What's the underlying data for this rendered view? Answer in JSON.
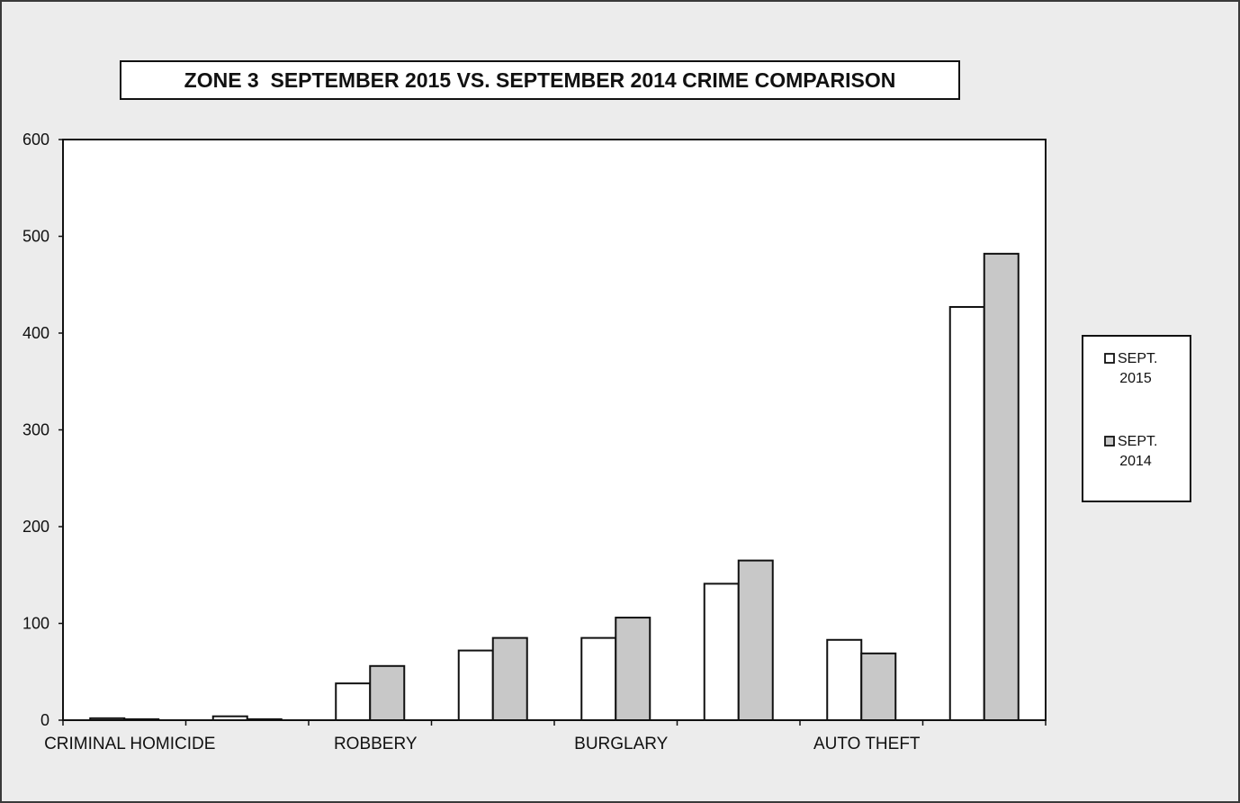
{
  "chart_data": {
    "type": "bar",
    "title": "ZONE 3  SEPTEMBER 2015 VS. SEPTEMBER 2014 CRIME COMPARISON",
    "xlabel": "",
    "ylabel": "",
    "ylim": [
      0,
      600
    ],
    "yticks": [
      0,
      100,
      200,
      300,
      400,
      500,
      600
    ],
    "categories": [
      "CRIMINAL HOMICIDE",
      "",
      "ROBBERY",
      "",
      "BURGLARY",
      "",
      "AUTO THEFT",
      ""
    ],
    "series": [
      {
        "name": "SEPT. 2015",
        "values": [
          2,
          4,
          38,
          72,
          85,
          141,
          83,
          427
        ],
        "color": "#ffffff"
      },
      {
        "name": "SEPT. 2014",
        "values": [
          1,
          1,
          56,
          85,
          106,
          165,
          69,
          482
        ],
        "color": "#c8c8c8"
      }
    ],
    "legend_position": "right",
    "grid": false
  }
}
